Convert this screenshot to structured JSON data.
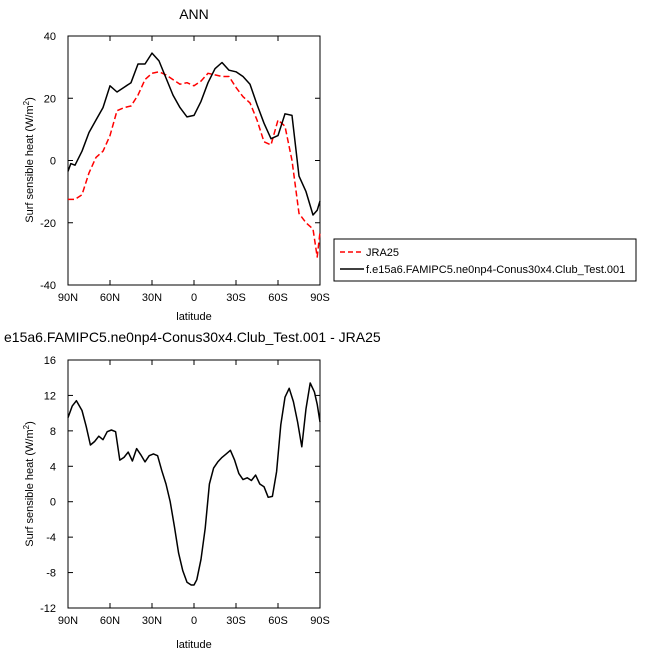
{
  "chart_data": [
    {
      "type": "line",
      "title": "ANN",
      "xlabel": "latitude",
      "ylabel": "Surf sensible heat (W/m²)",
      "x_tick_labels": [
        "90N",
        "60N",
        "30N",
        "0",
        "30S",
        "60S",
        "90S"
      ],
      "x_tick_values": [
        90,
        60,
        30,
        0,
        -30,
        -60,
        -90
      ],
      "xlim": [
        90,
        -90
      ],
      "ylim": [
        -40,
        40
      ],
      "y_ticks": [
        -40,
        -20,
        0,
        20,
        40
      ],
      "grid": false,
      "legend_placement": "outside-right",
      "series": [
        {
          "name": "JRA25",
          "color": "#ff0000",
          "dash": "dashed",
          "x": [
            90,
            85,
            80,
            75,
            70,
            65,
            60,
            55,
            50,
            45,
            40,
            35,
            30,
            25,
            20,
            15,
            10,
            5,
            0,
            -5,
            -10,
            -15,
            -20,
            -25,
            -30,
            -35,
            -40,
            -45,
            -50,
            -55,
            -60,
            -65,
            -70,
            -75,
            -80,
            -85,
            -88,
            -90
          ],
          "y": [
            -12.5,
            -12.5,
            -11,
            -4,
            1,
            3,
            8,
            16,
            17,
            17.5,
            21,
            26,
            28,
            28.5,
            27.5,
            26,
            24.5,
            25,
            24,
            25.5,
            28,
            27.5,
            27,
            27,
            23.5,
            20.5,
            18.5,
            13,
            6,
            5,
            13,
            11,
            0,
            -17,
            -20,
            -22,
            -31,
            -23
          ]
        },
        {
          "name": "f.e15a6.FAMIPC5.ne0np4-Conus30x4.Club_Test.001",
          "color": "#000000",
          "dash": "solid",
          "x": [
            90,
            88,
            85,
            80,
            75,
            70,
            65,
            60,
            55,
            50,
            45,
            40,
            35,
            30,
            25,
            20,
            15,
            10,
            5,
            0,
            -5,
            -10,
            -15,
            -20,
            -25,
            -30,
            -35,
            -40,
            -45,
            -50,
            -55,
            -60,
            -65,
            -70,
            -75,
            -80,
            -85,
            -88,
            -90
          ],
          "y": [
            -3.5,
            -1,
            -1.5,
            3,
            9,
            13,
            17,
            24,
            22,
            23.5,
            25,
            31,
            31,
            34.5,
            32,
            26.5,
            21,
            17,
            14,
            14.5,
            19,
            25,
            29.5,
            31.5,
            29,
            28.5,
            27,
            24.5,
            18,
            12,
            7,
            8,
            15,
            14.5,
            -5,
            -10,
            -17.5,
            -16,
            -13
          ]
        }
      ]
    },
    {
      "type": "line",
      "title": "e15a6.FAMIPC5.ne0np4-Conus30x4.Club_Test.001 - JRA25",
      "xlabel": "latitude",
      "ylabel": "Surf sensible heat (W/m²)",
      "x_tick_labels": [
        "90N",
        "60N",
        "30N",
        "0",
        "30S",
        "60S",
        "90S"
      ],
      "x_tick_values": [
        90,
        60,
        30,
        0,
        -30,
        -60,
        -90
      ],
      "xlim": [
        90,
        -90
      ],
      "ylim": [
        -12,
        16
      ],
      "y_ticks": [
        -12,
        -8,
        -4,
        0,
        4,
        8,
        12,
        16
      ],
      "grid": false,
      "series": [
        {
          "color": "#000000",
          "dash": "solid",
          "x": [
            90,
            87,
            84,
            80,
            77,
            74,
            71,
            68,
            65,
            62,
            59,
            56,
            53,
            50,
            47,
            44,
            41,
            38,
            35,
            32,
            29,
            26,
            23,
            20,
            17,
            14,
            11,
            8,
            5,
            2,
            0,
            -2,
            -5,
            -8,
            -11,
            -14,
            -17,
            -20,
            -23,
            -26,
            -29,
            -32,
            -35,
            -38,
            -41,
            -44,
            -47,
            -50,
            -53,
            -56,
            -59,
            -62,
            -65,
            -68,
            -71,
            -74,
            -77,
            -80,
            -83,
            -86,
            -88,
            -90
          ],
          "y": [
            9.5,
            10.8,
            11.4,
            10.3,
            8.5,
            6.4,
            6.8,
            7.4,
            7,
            7.9,
            8.1,
            7.9,
            4.7,
            5,
            5.6,
            4.6,
            6,
            5.3,
            4.5,
            5.2,
            5.4,
            5.2,
            3.5,
            2,
            0,
            -2.8,
            -5.8,
            -7.8,
            -9.1,
            -9.4,
            -9.4,
            -8.8,
            -6.5,
            -3,
            2,
            3.8,
            4.5,
            5,
            5.4,
            5.8,
            4.7,
            3.2,
            2.5,
            2.7,
            2.4,
            3,
            2,
            1.7,
            0.5,
            0.6,
            3.4,
            8.7,
            11.8,
            12.8,
            11.3,
            9,
            6.2,
            10.5,
            13.4,
            12.4,
            11,
            9
          ]
        }
      ]
    }
  ]
}
